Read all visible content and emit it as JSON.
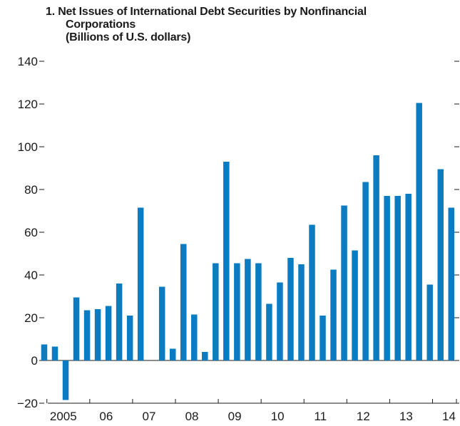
{
  "title": {
    "number": "1.",
    "line1": "Net Issues of International Debt Securities by Nonfinancial",
    "line2": "Corporations",
    "line3": "(Billions of U.S. dollars)"
  },
  "chart_data": {
    "type": "bar",
    "title": "1. Net Issues of International Debt Securities by Nonfinancial Corporations (Billions of U.S. dollars)",
    "xlabel": "",
    "ylabel": "",
    "ylim": [
      -20,
      140
    ],
    "yticks": [
      -20,
      0,
      20,
      40,
      60,
      80,
      100,
      120,
      140
    ],
    "ytick_labels": [
      "−20",
      "0",
      "20",
      "40",
      "60",
      "80",
      "100",
      "120",
      "140"
    ],
    "xtick_labels": [
      "2005",
      "06",
      "07",
      "08",
      "09",
      "10",
      "11",
      "12",
      "13",
      "14"
    ],
    "bar_color": "#0b7cc1",
    "grid": false,
    "frequency": "quarterly",
    "series": [
      {
        "values": [
          7.5,
          6.5,
          -18.5,
          29.5,
          23.5,
          24,
          25.5,
          36,
          21,
          71.5,
          0,
          34.5,
          5.5,
          54.5,
          21.5,
          4,
          45.5,
          93,
          45.5,
          47.5,
          45.5,
          26.5,
          36.5,
          48,
          45,
          63.5,
          21,
          42.5,
          72.5,
          51.5,
          83.5,
          96,
          77,
          77,
          78,
          120.5,
          35.5,
          89.5,
          71.5
        ]
      }
    ]
  }
}
